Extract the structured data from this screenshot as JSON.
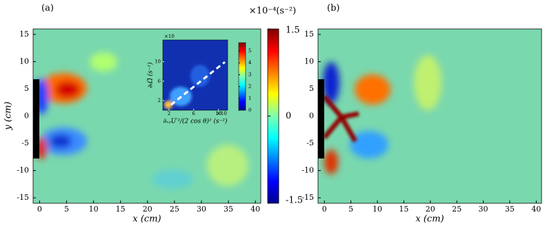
{
  "chart_data": [
    {
      "type": "heatmap",
      "title": "(a)",
      "x_label": "x (cm)",
      "y_label": "y (cm)",
      "xlim": [
        -1.2,
        41
      ],
      "ylim": [
        -16,
        16
      ],
      "xticks": [
        0,
        5,
        10,
        15,
        20,
        25,
        30,
        35,
        40
      ],
      "yticks": [
        -15,
        -10,
        -5,
        0,
        5,
        10,
        15
      ],
      "colorbar": {
        "label": "×10⁻⁴(s⁻²)",
        "lim": [
          -1.5,
          1.5
        ],
        "ticks": [
          1.5,
          0,
          -1.5
        ]
      },
      "inset": {
        "x_label": "∂ₓᵧU′²/(2 cos θ)² (s⁻²)",
        "y_label": "∂ₜΩ̄ (s⁻²)",
        "x_scale": "×10",
        "y_scale": "×10",
        "xlim": [
          1,
          11.5
        ],
        "ylim": [
          0,
          14.5
        ],
        "xticks": [
          2,
          6,
          10
        ],
        "yticks": [
          2,
          6,
          10
        ],
        "colorbar_lim": [
          0,
          5.7
        ],
        "colorbar_ticks": [
          0,
          1,
          2,
          3,
          4,
          5
        ]
      }
    },
    {
      "type": "heatmap",
      "title": "(b)",
      "x_label": "x (cm)",
      "xlim": [
        -1.2,
        41
      ],
      "ylim": [
        -16,
        16
      ],
      "xticks": [
        0,
        5,
        10,
        15,
        20,
        25,
        30,
        35,
        40
      ],
      "yticks": [
        -15,
        -10,
        -5,
        0,
        5,
        10,
        15
      ]
    }
  ]
}
